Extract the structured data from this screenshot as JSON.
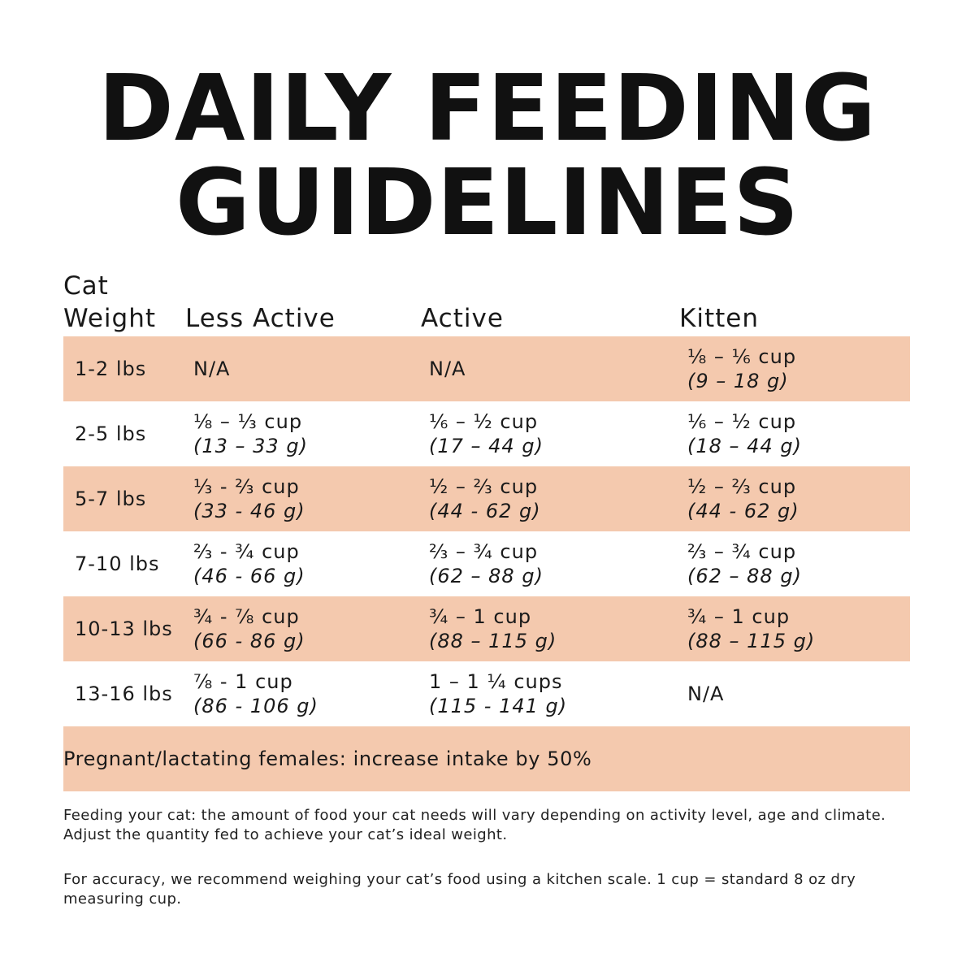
{
  "title": {
    "line1": "DAILY FEEDING",
    "line2": "GUIDELINES"
  },
  "colors": {
    "row_shade": "#f4c9ae",
    "text": "#141414",
    "background": "#ffffff"
  },
  "table": {
    "headers": {
      "weight": "Cat\nWeight",
      "less_active": "Less Active",
      "active": "Active",
      "kitten": "Kitten"
    },
    "rows": [
      {
        "weight": "1-2 lbs",
        "less_active": {
          "cup": "N/A",
          "gram": ""
        },
        "active": {
          "cup": "N/A",
          "gram": ""
        },
        "kitten": {
          "cup": "⅛ – ⅙ cup",
          "gram": "(9 – 18 g)"
        }
      },
      {
        "weight": "2-5 lbs",
        "less_active": {
          "cup": "⅛ – ⅓ cup",
          "gram": "(13 – 33 g)"
        },
        "active": {
          "cup": "⅙ – ½ cup",
          "gram": "(17 – 44 g)"
        },
        "kitten": {
          "cup": "⅙ – ½ cup",
          "gram": "(18 – 44 g)"
        }
      },
      {
        "weight": "5-7 lbs",
        "less_active": {
          "cup": "⅓ - ⅔ cup",
          "gram": "(33 - 46 g)"
        },
        "active": {
          "cup": "½ – ⅔ cup",
          "gram": "(44 - 62 g)"
        },
        "kitten": {
          "cup": "½ – ⅔ cup",
          "gram": "(44 - 62 g)"
        }
      },
      {
        "weight": "7-10 lbs",
        "less_active": {
          "cup": "⅔ - ¾ cup",
          "gram": "(46 - 66 g)"
        },
        "active": {
          "cup": "⅔ – ¾ cup",
          "gram": "(62 – 88 g)"
        },
        "kitten": {
          "cup": "⅔ – ¾ cup",
          "gram": "(62 – 88 g)"
        }
      },
      {
        "weight": "10-13 lbs",
        "less_active": {
          "cup": "¾ - ⅞ cup",
          "gram": "(66 - 86 g)"
        },
        "active": {
          "cup": "¾ – 1 cup",
          "gram": "(88 – 115 g)"
        },
        "kitten": {
          "cup": "¾ – 1 cup",
          "gram": "(88 – 115 g)"
        }
      },
      {
        "weight": "13-16 lbs",
        "less_active": {
          "cup": "⅞ - 1 cup",
          "gram": "(86 - 106 g)"
        },
        "active": {
          "cup": "1 – 1 ¼ cups",
          "gram": "(115 - 141 g)"
        },
        "kitten": {
          "cup": "N/A",
          "gram": ""
        }
      }
    ],
    "note": "Pregnant/lactating females: increase intake by 50%"
  },
  "footnotes": [
    "Feeding your cat: the amount of food your cat needs will vary depending on activity level, age and climate. Adjust the quantity fed to achieve your cat’s ideal weight.",
    "For accuracy, we recommend weighing your cat’s food using a kitchen scale. 1 cup = standard 8 oz dry measuring cup."
  ]
}
